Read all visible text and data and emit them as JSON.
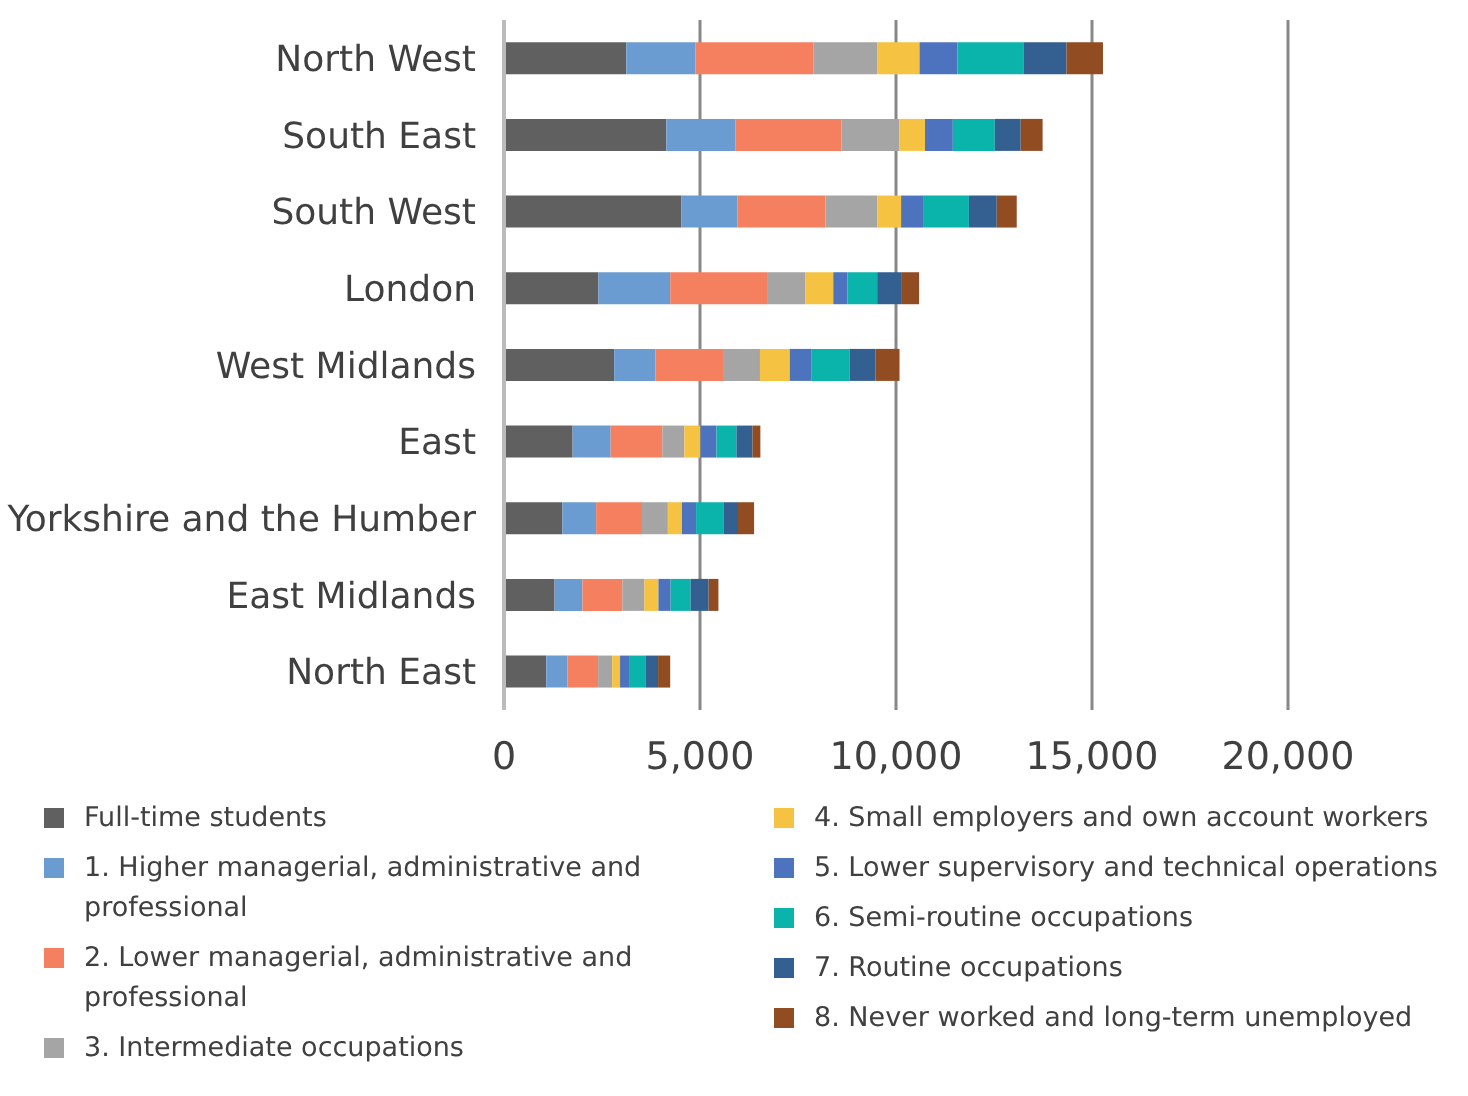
{
  "chart_data": {
    "type": "bar",
    "orientation": "horizontal",
    "stacked": true,
    "categories": [
      "North West",
      "South East",
      "South West",
      "London",
      "West Midlands",
      "East",
      "Yorkshire and the Humber",
      "East Midlands",
      "North East"
    ],
    "series": [
      {
        "name": "Full-time students",
        "color": "#606060",
        "values": [
          3120,
          4140,
          4520,
          2410,
          2810,
          1750,
          1490,
          1290,
          1080
        ]
      },
      {
        "name": "1. Higher managerial, administrative and professional",
        "color": "#6a9cd2",
        "values": [
          1760,
          1760,
          1440,
          1830,
          1050,
          970,
          860,
          710,
          540
        ]
      },
      {
        "name": "2. Lower managerial, administrative and professional",
        "color": "#f4805f",
        "values": [
          3020,
          2710,
          2240,
          2470,
          1750,
          1320,
          1170,
          1020,
          780
        ]
      },
      {
        "name": "3. Intermediate occupations",
        "color": "#a5a5a5",
        "values": [
          1630,
          1470,
          1320,
          980,
          920,
          560,
          660,
          560,
          360
        ]
      },
      {
        "name": "4. Small employers and own account workers",
        "color": "#f5c242",
        "values": [
          1070,
          660,
          610,
          710,
          760,
          410,
          360,
          360,
          200
        ]
      },
      {
        "name": "5. Lower supervisory and technical operations",
        "color": "#4e73be",
        "values": [
          970,
          710,
          560,
          360,
          560,
          410,
          360,
          310,
          250
        ]
      },
      {
        "name": "6. Semi-routine occupations",
        "color": "#0ab4aa",
        "values": [
          1680,
          1070,
          1170,
          760,
          970,
          510,
          710,
          510,
          410
        ]
      },
      {
        "name": "7. Routine occupations",
        "color": "#335f91",
        "values": [
          1100,
          660,
          710,
          610,
          660,
          410,
          360,
          460,
          310
        ]
      },
      {
        "name": "8. Never worked and long-term unemployed",
        "color": "#914c21",
        "values": [
          930,
          560,
          510,
          460,
          610,
          200,
          410,
          250,
          310
        ]
      }
    ],
    "xlim": [
      0,
      20000
    ],
    "xticks": [
      {
        "value": 0,
        "label": "0"
      },
      {
        "value": 5000,
        "label": "5,000"
      },
      {
        "value": 10000,
        "label": "10,000"
      },
      {
        "value": 15000,
        "label": "15,000"
      },
      {
        "value": 20000,
        "label": "20,000"
      }
    ],
    "grid": "x",
    "legend": "bottom"
  }
}
